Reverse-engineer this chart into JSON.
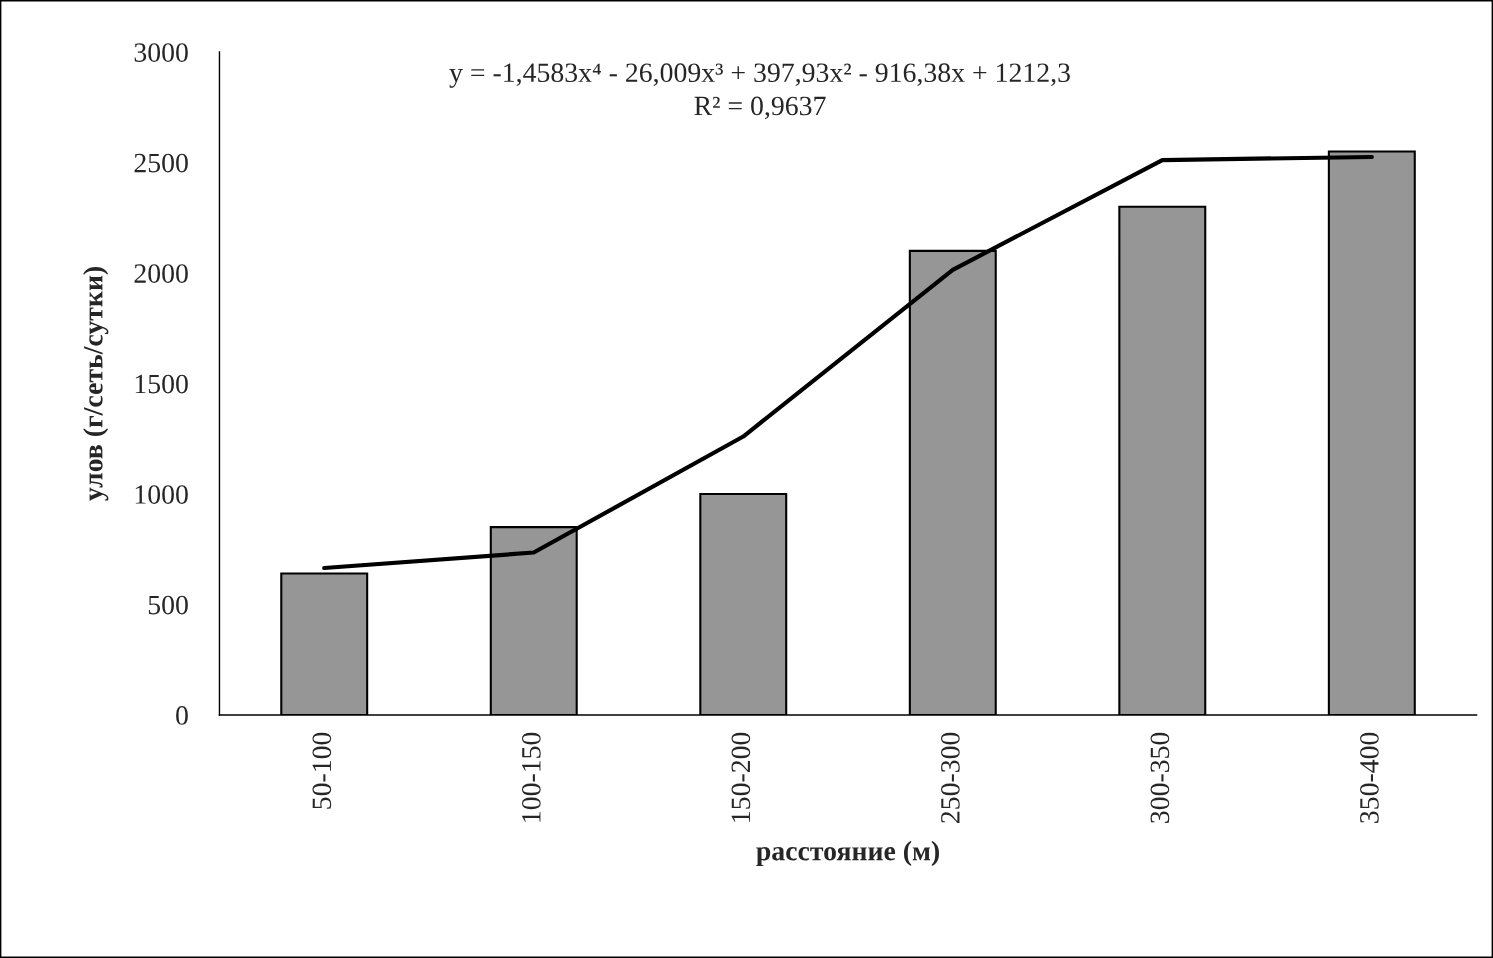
{
  "chart_data": {
    "type": "bar",
    "xlabel": "расстояние (м)",
    "ylabel": "улов (г/сеть/сутки)",
    "categories": [
      "50-100",
      "100-150",
      "150-200",
      "250-300",
      "300-350",
      "350-400"
    ],
    "series": [
      {
        "color": "#969696",
        "values": [
          640,
          850,
          1000,
          2100,
          2300,
          2550
        ]
      },
      {
        "type": "line",
        "color": "#000000",
        "values": [
          665,
          735,
          1260,
          2014,
          2511,
          2525
        ]
      }
    ],
    "ylim": [
      0,
      3000
    ],
    "yticks": [
      0,
      500,
      1000,
      1500,
      2000,
      2500,
      3000
    ],
    "annotations": [
      "y = -1,4583x⁴ - 26,009x³ + 397,93x² - 916,38x + 1212,3",
      "R² = 0,9637"
    ],
    "grid": false,
    "legend": false
  }
}
